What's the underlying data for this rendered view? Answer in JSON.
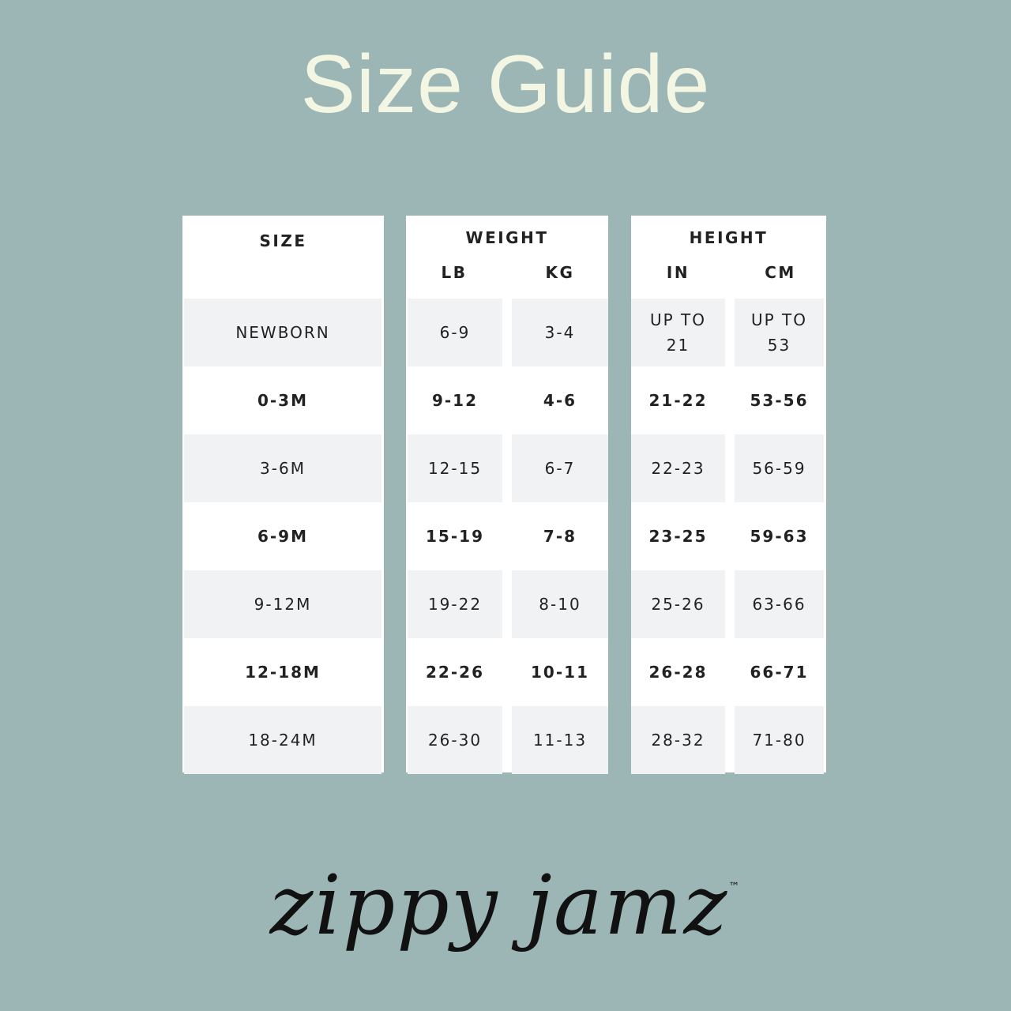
{
  "title": "Size Guide",
  "colors": {
    "background": "#9cb6b5",
    "title": "#f4f6e4",
    "panel": "#ffffff",
    "alt_row": "#f1f2f4",
    "text": "#222222"
  },
  "table": {
    "size_header": "SIZE",
    "weight_header": "WEIGHT",
    "weight_units": [
      "LB",
      "KG"
    ],
    "height_header": "HEIGHT",
    "height_units": [
      "IN",
      "CM"
    ],
    "rows": [
      {
        "size": "NEWBORN",
        "lb": "6-9",
        "kg": "3-4",
        "in": "UP TO 21",
        "cm": "UP TO 53"
      },
      {
        "size": "0-3M",
        "lb": "9-12",
        "kg": "4-6",
        "in": "21-22",
        "cm": "53-56"
      },
      {
        "size": "3-6M",
        "lb": "12-15",
        "kg": "6-7",
        "in": "22-23",
        "cm": "56-59"
      },
      {
        "size": "6-9M",
        "lb": "15-19",
        "kg": "7-8",
        "in": "23-25",
        "cm": "59-63"
      },
      {
        "size": "9-12M",
        "lb": "19-22",
        "kg": "8-10",
        "in": "25-26",
        "cm": "63-66"
      },
      {
        "size": "12-18M",
        "lb": "22-26",
        "kg": "10-11",
        "in": "26-28",
        "cm": "66-71"
      },
      {
        "size": "18-24M",
        "lb": "26-30",
        "kg": "11-13",
        "in": "28-32",
        "cm": "71-80"
      }
    ]
  },
  "logo": {
    "text": "zippy jamz",
    "trademark": "™"
  }
}
